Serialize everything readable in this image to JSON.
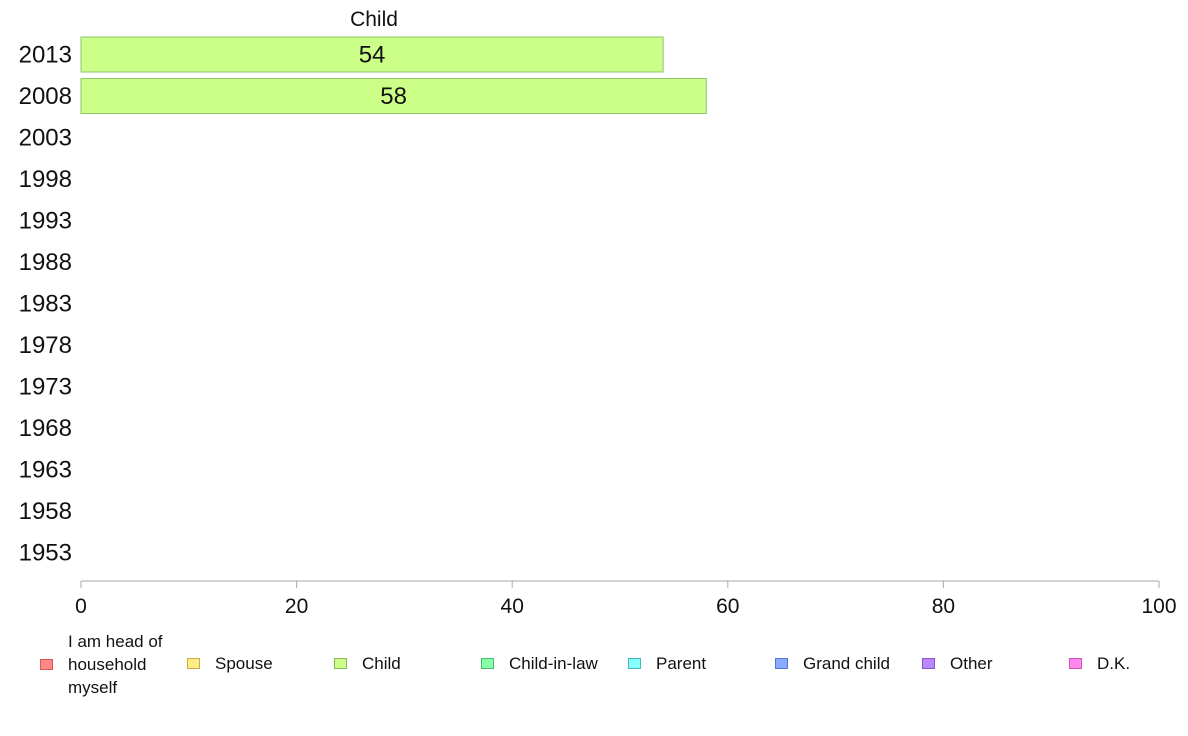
{
  "chart_data": {
    "type": "bar",
    "orientation": "horizontal",
    "series_label": "Child",
    "categories": [
      "2013",
      "2008",
      "2003",
      "1998",
      "1993",
      "1988",
      "1983",
      "1978",
      "1973",
      "1968",
      "1963",
      "1958",
      "1953"
    ],
    "series": [
      {
        "name": "Child",
        "color": "#ccff88",
        "values": [
          54,
          58,
          null,
          null,
          null,
          null,
          null,
          null,
          null,
          null,
          null,
          null,
          null
        ],
        "labels": [
          "54",
          "58",
          "",
          "",
          "",
          "",
          "",
          "",
          "",
          "",
          "",
          "",
          ""
        ]
      }
    ],
    "xlim": [
      0,
      100
    ],
    "xticks": [
      "0",
      "20",
      "40",
      "60",
      "80",
      "100"
    ],
    "grid": false,
    "legend_position": "bottom",
    "legend": [
      {
        "label": "I am head of household myself",
        "color": "#ff8888",
        "border": "#dd5555"
      },
      {
        "label": "Spouse",
        "color": "#ffee88",
        "border": "#ccaa44"
      },
      {
        "label": "Child",
        "color": "#ccff88",
        "border": "#88bb55"
      },
      {
        "label": "Child-in-law",
        "color": "#88ffaa",
        "border": "#44bb66"
      },
      {
        "label": "Parent",
        "color": "#88ffff",
        "border": "#44bbbb"
      },
      {
        "label": "Grand child",
        "color": "#88aaff",
        "border": "#5577cc"
      },
      {
        "label": "Other",
        "color": "#bb88ff",
        "border": "#8855cc"
      },
      {
        "label": "D.K.",
        "color": "#ff88ee",
        "border": "#cc55bb"
      }
    ]
  }
}
